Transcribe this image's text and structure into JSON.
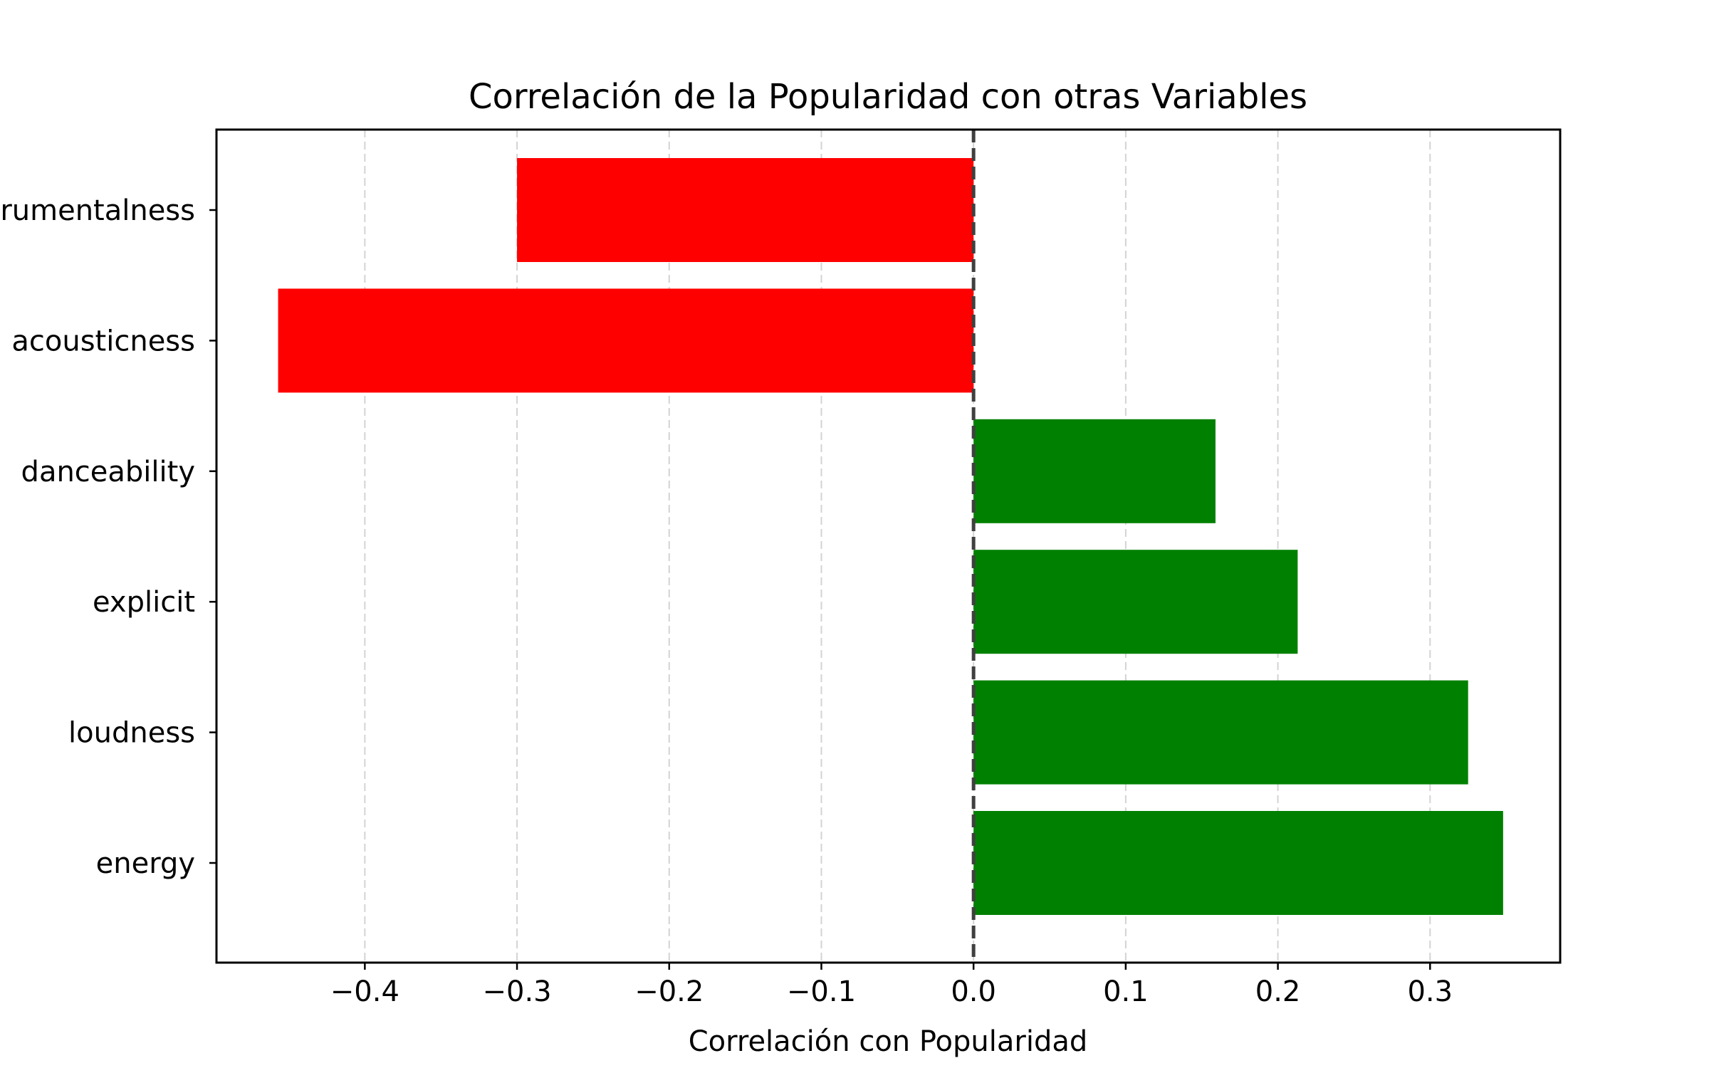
{
  "chart_data": {
    "type": "bar",
    "orientation": "horizontal",
    "title": "Correlación de la Popularidad con otras Variables",
    "xlabel": "Correlación con Popularidad",
    "ylabel": "",
    "categories": [
      "energy",
      "loudness",
      "explicit",
      "danceability",
      "acousticness",
      "instrumentalness"
    ],
    "values": [
      0.348,
      0.325,
      0.213,
      0.159,
      -0.457,
      -0.3
    ],
    "xlim": [
      -0.4975,
      0.3855
    ],
    "xticks": [
      -0.4,
      -0.3,
      -0.2,
      -0.1,
      0.0,
      0.1,
      0.2,
      0.3
    ],
    "xtick_labels": [
      "−0.4",
      "−0.3",
      "−0.2",
      "−0.1",
      "0.0",
      "0.1",
      "0.2",
      "0.3"
    ],
    "grid": "vertical dashed",
    "reference_line": 0.0,
    "colors": {
      "positive": "#008000",
      "negative": "#ff0000",
      "grid": "#d3d3d3",
      "reference": "#404040"
    }
  }
}
